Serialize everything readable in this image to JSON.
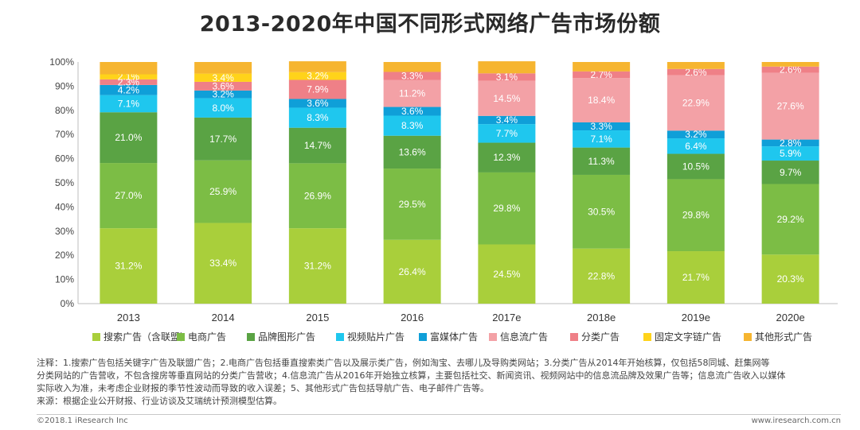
{
  "title": "2013-2020年中国不同形式网络广告市场份额",
  "chart_data": {
    "type": "bar",
    "stacked": true,
    "categories": [
      "2013",
      "2014",
      "2015",
      "2016",
      "2017e",
      "2018e",
      "2019e",
      "2020e"
    ],
    "ylim": [
      0,
      100
    ],
    "yticks": [
      "0%",
      "10%",
      "20%",
      "30%",
      "40%",
      "50%",
      "60%",
      "70%",
      "80%",
      "90%",
      "100%"
    ],
    "grid": false,
    "legend": "bottom",
    "series": [
      {
        "name": "搜索广告（含联盟）",
        "color": "#a9cf3b",
        "values": [
          31.2,
          33.4,
          31.2,
          26.4,
          24.5,
          22.8,
          21.7,
          20.3
        ]
      },
      {
        "name": "电商广告",
        "color": "#7cbd45",
        "values": [
          27.0,
          25.9,
          26.9,
          29.5,
          29.8,
          30.5,
          29.8,
          29.2
        ]
      },
      {
        "name": "品牌图形广告",
        "color": "#5aa344",
        "values": [
          21.0,
          17.7,
          14.7,
          13.6,
          12.3,
          11.3,
          10.5,
          9.7
        ]
      },
      {
        "name": "视频贴片广告",
        "color": "#1fc7ee",
        "values": [
          7.1,
          8.0,
          8.3,
          8.3,
          7.7,
          7.1,
          6.4,
          5.9
        ]
      },
      {
        "name": "富媒体广告",
        "color": "#0f9fd8",
        "values": [
          4.2,
          3.2,
          3.6,
          3.6,
          3.4,
          3.3,
          3.2,
          2.8
        ]
      },
      {
        "name": "信息流广告",
        "color": "#f3a1a6",
        "values": [
          null,
          null,
          null,
          11.2,
          14.5,
          18.4,
          22.9,
          27.6
        ]
      },
      {
        "name": "分类广告",
        "color": "#ef8087",
        "values": [
          2.3,
          3.6,
          7.9,
          3.3,
          3.1,
          2.7,
          2.6,
          2.6
        ]
      },
      {
        "name": "固定文字链广告",
        "color": "#ffd31a",
        "values": [
          2.1,
          3.4,
          3.2,
          null,
          null,
          null,
          null,
          null
        ]
      },
      {
        "name": "其他形式广告",
        "color": "#f6b530",
        "values": [
          5.1,
          4.8,
          4.5,
          4.1,
          5.0,
          3.9,
          2.9,
          1.9
        ]
      }
    ],
    "data_labels": [
      [
        "31.2%",
        "27.0%",
        "21.0%",
        "7.1%",
        "4.2%",
        "",
        "2.3%",
        "2.1%",
        ""
      ],
      [
        "33.4%",
        "25.9%",
        "17.7%",
        "8.0%",
        "3.2%",
        "",
        "3.6%",
        "3.4%",
        ""
      ],
      [
        "31.2%",
        "26.9%",
        "14.7%",
        "8.3%",
        "3.6%",
        "",
        "7.9%",
        "3.2%",
        ""
      ],
      [
        "26.4%",
        "29.5%",
        "13.6%",
        "8.3%",
        "3.6%",
        "11.2%",
        "3.3%",
        "",
        ""
      ],
      [
        "24.5%",
        "29.8%",
        "12.3%",
        "7.7%",
        "3.4%",
        "14.5%",
        "3.1%",
        "",
        ""
      ],
      [
        "22.8%",
        "30.5%",
        "11.3%",
        "7.1%",
        "3.3%",
        "18.4%",
        "2.7%",
        "",
        ""
      ],
      [
        "21.7%",
        "29.8%",
        "10.5%",
        "6.4%",
        "3.2%",
        "22.9%",
        "2.6%",
        "",
        ""
      ],
      [
        "20.3%",
        "29.2%",
        "9.7%",
        "5.9%",
        "2.8%",
        "27.6%",
        "2.6%",
        "",
        ""
      ]
    ]
  },
  "notes": {
    "line1": "注释：1.搜索广告包括关键字广告及联盟广告；2.电商广告包括垂直搜索类广告以及展示类广告，例如淘宝、去哪儿及导购类网站；3.分类广告从2014年开始核算，仅包括58同城、赶集网等",
    "line2": "分类网站的广告营收，不包含搜房等垂直网站的分类广告营收；4.信息流广告从2016年开始独立核算，主要包括社交、新闻资讯、视频网站中的信息流品牌及效果广告等；信息流广告收入以媒体",
    "line3": "实际收入为准，未考虑企业财报的季节性波动而导致的收入误差；5、其他形式广告包括导航广告、电子邮件广告等。",
    "source": "来源：根据企业公开财报、行业访谈及艾瑞统计预测模型估算。"
  },
  "footer": {
    "copyright": "©2018.1 iResearch Inc",
    "website": "www.iresearch.com.cn"
  }
}
